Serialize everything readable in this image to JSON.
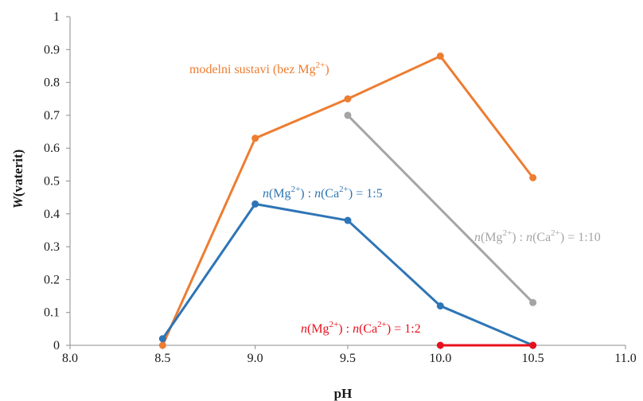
{
  "chart_data": {
    "type": "line",
    "xlabel": "pH",
    "ylabel_parts": {
      "main": "W",
      "rest": "(vaterit)"
    },
    "xlim": [
      8.0,
      11.0
    ],
    "ylim": [
      0,
      1
    ],
    "x_ticks": [
      "8.0",
      "8.5",
      "9.0",
      "9.5",
      "10.0",
      "10.5",
      "11.0"
    ],
    "y_ticks": [
      "0",
      "0.1",
      "0.2",
      "0.3",
      "0.4",
      "0.5",
      "0.6",
      "0.7",
      "0.8",
      "0.9",
      "1"
    ],
    "grid": false,
    "series": [
      {
        "name": "modelni sustavi (bez Mg2+)",
        "color": "#ed7d31",
        "label_parts": [
          {
            "t": "modelni sustavi (bez Mg"
          },
          {
            "t": "2+",
            "sup": true
          },
          {
            "t": ")"
          }
        ],
        "x": [
          8.5,
          9.0,
          9.5,
          10.0,
          10.5
        ],
        "y": [
          0.0,
          0.63,
          0.75,
          0.88,
          0.51
        ]
      },
      {
        "name": "n(Mg2+) : n(Ca2+) = 1:5",
        "color": "#2e75b6",
        "label_parts": [
          {
            "t": "n",
            "italic": true
          },
          {
            "t": "(Mg"
          },
          {
            "t": "2+",
            "sup": true
          },
          {
            "t": ") : "
          },
          {
            "t": "n",
            "italic": true
          },
          {
            "t": "(Ca"
          },
          {
            "t": "2+",
            "sup": true
          },
          {
            "t": ") = 1:5"
          }
        ],
        "x": [
          8.5,
          9.0,
          9.5,
          10.0,
          10.5
        ],
        "y": [
          0.02,
          0.43,
          0.38,
          0.12,
          0.0
        ]
      },
      {
        "name": "n(Mg2+) : n(Ca2+) = 1:10",
        "color": "#a5a5a5",
        "label_parts": [
          {
            "t": "n",
            "italic": true
          },
          {
            "t": "(Mg"
          },
          {
            "t": "2+",
            "sup": true
          },
          {
            "t": ") : "
          },
          {
            "t": "n",
            "italic": true
          },
          {
            "t": "(Ca"
          },
          {
            "t": "2+",
            "sup": true
          },
          {
            "t": ") = 1:10"
          }
        ],
        "x": [
          9.5,
          10.5
        ],
        "y": [
          0.7,
          0.13
        ]
      },
      {
        "name": "n(Mg2+) : n(Ca2+) = 1:2",
        "color": "#e8101d",
        "label_parts": [
          {
            "t": "n",
            "italic": true
          },
          {
            "t": "(Mg"
          },
          {
            "t": "2+",
            "sup": true
          },
          {
            "t": ") : "
          },
          {
            "t": "n",
            "italic": true
          },
          {
            "t": "(Ca"
          },
          {
            "t": "2+",
            "sup": true
          },
          {
            "t": ") = 1:2"
          }
        ],
        "x": [
          10.0,
          10.5
        ],
        "y": [
          0.0,
          0.0
        ]
      }
    ]
  }
}
